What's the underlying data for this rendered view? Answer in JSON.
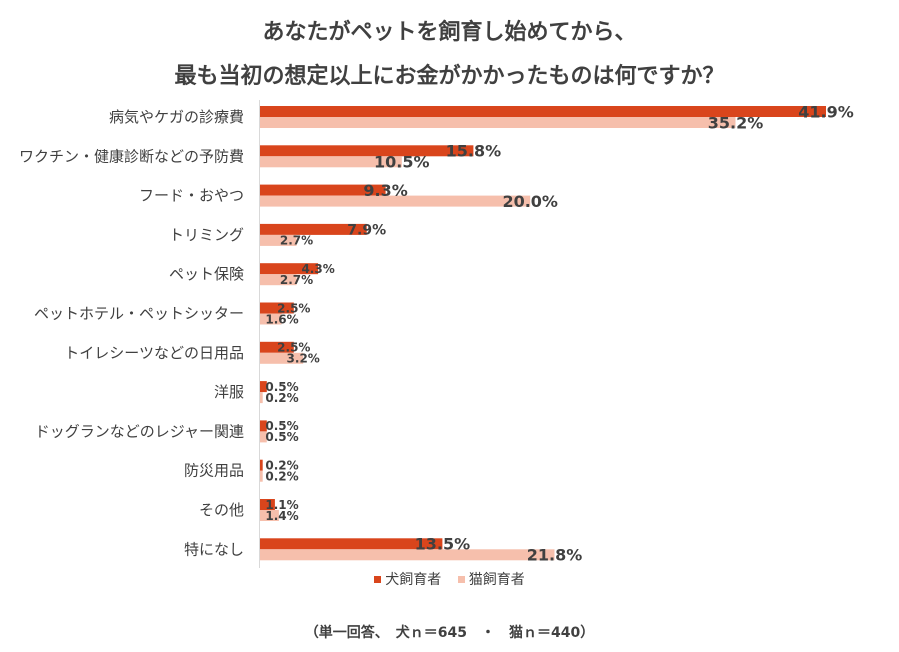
{
  "title_line1": "あなたがペットを飼育し始めてから、",
  "title_line2": "最も当初の想定以上にお金がかかったものは何ですか？",
  "footnote": "（単一回答、　犬ｎ＝645　・　猫ｎ＝440）",
  "chart_data": {
    "type": "bar",
    "orientation": "horizontal",
    "categories": [
      "病気やケガの診療費",
      "ワクチン・健康診断などの予防費",
      "フード・おやつ",
      "トリミング",
      "ペット保険",
      "ペットホテル・ペットシッター",
      "トイレシーツなどの日用品",
      "洋服",
      "ドッグランなどのレジャー関連",
      "防災用品",
      "その他",
      "特になし"
    ],
    "series": [
      {
        "name": "犬飼育者",
        "color": "#d9451c",
        "values": [
          41.9,
          15.8,
          9.3,
          7.9,
          4.3,
          2.5,
          2.5,
          0.5,
          0.5,
          0.2,
          1.1,
          13.5
        ],
        "labels": [
          "41.9%",
          "15.8%",
          "9.3%",
          "7.9%",
          "4.3%",
          "2.5%",
          "2.5%",
          "0.5%",
          "0.5%",
          "0.2%",
          "1.1%",
          "13.5%"
        ]
      },
      {
        "name": "猫飼育者",
        "color": "#f6bfac",
        "values": [
          35.2,
          10.5,
          20.0,
          2.7,
          2.7,
          1.6,
          3.2,
          0.2,
          0.5,
          0.2,
          1.4,
          21.8
        ],
        "labels": [
          "35.2%",
          "10.5%",
          "20.0%",
          "2.7%",
          "2.7%",
          "1.6%",
          "3.2%",
          "0.2%",
          "0.5%",
          "0.2%",
          "1.4%",
          "21.8%"
        ]
      }
    ],
    "xlim": [
      0,
      45
    ],
    "grid": false,
    "legend_position": "bottom"
  }
}
